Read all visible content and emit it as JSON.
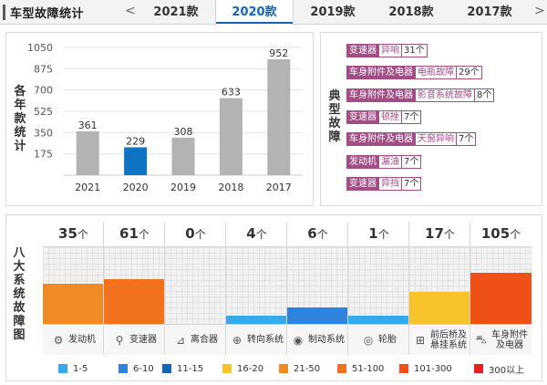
{
  "header": {
    "title": "车型故障统计",
    "prev_arrow": "<",
    "next_arrow": ">",
    "tabs": [
      "2021款",
      "2020款",
      "2019款",
      "2018款",
      "2017款"
    ],
    "active_tab": "2020款"
  },
  "chart_data": {
    "type": "bar",
    "ylabel": "各年款统计",
    "yticks": [
      175,
      350,
      525,
      700,
      875,
      1050
    ],
    "ylim": [
      0,
      1050
    ],
    "grid": true,
    "categories": [
      "2021",
      "2020",
      "2019",
      "2018",
      "2017"
    ],
    "values": [
      361,
      229,
      308,
      633,
      952
    ],
    "highlight": "2020",
    "colors": {
      "default": "#b3b3b3",
      "highlight": "#0f74c4"
    }
  },
  "typical_faults": {
    "label": "典型故障",
    "items": [
      {
        "category": "变速器",
        "desc": "异响",
        "count": "31个"
      },
      {
        "category": "车身附件及电器",
        "desc": "电瓶故障",
        "count": "29个"
      },
      {
        "category": "车身附件及电器",
        "desc": "影音系统故障",
        "count": "8个"
      },
      {
        "category": "变速器",
        "desc": "顿挫",
        "count": "7个"
      },
      {
        "category": "车身附件及电器",
        "desc": "天窗异响",
        "count": "7个"
      },
      {
        "category": "发动机",
        "desc": "漏油",
        "count": "7个"
      },
      {
        "category": "变速器",
        "desc": "异挡",
        "count": "7个"
      }
    ]
  },
  "systems": {
    "label": "八大系统故障图",
    "unit": "个",
    "items": [
      {
        "value": "35",
        "name": "发动机",
        "icon": "engine-icon",
        "level": 0.52,
        "color": "#f08a24"
      },
      {
        "value": "61",
        "name": "变速器",
        "icon": "gearshift-icon",
        "level": 0.58,
        "color": "#f2711c"
      },
      {
        "value": "0",
        "name": "离合器",
        "icon": "clutch-pedal-icon",
        "level": 0.0,
        "color": "#ffffff"
      },
      {
        "value": "4",
        "name": "转向系统",
        "icon": "steering-wheel-icon",
        "level": 0.11,
        "color": "#36a9e8"
      },
      {
        "value": "6",
        "name": "制动系统",
        "icon": "brake-disc-icon",
        "level": 0.22,
        "color": "#2e84dc"
      },
      {
        "value": "1",
        "name": "轮胎",
        "icon": "tire-icon",
        "level": 0.11,
        "color": "#36a9e8"
      },
      {
        "value": "17",
        "name": "前后桥及\n悬挂系统",
        "icon": "suspension-icon",
        "level": 0.42,
        "color": "#f8c22a"
      },
      {
        "value": "105",
        "name": "车身附件\n及电器",
        "icon": "car-body-icon",
        "level": 0.67,
        "color": "#ef5016"
      }
    ]
  },
  "legend": [
    {
      "label": "1-5",
      "color": "#36a9e8"
    },
    {
      "label": "6-10",
      "color": "#2e84dc"
    },
    {
      "label": "11-15",
      "color": "#1665b2"
    },
    {
      "label": "16-20",
      "color": "#f8c22a"
    },
    {
      "label": "21-50",
      "color": "#f08a24"
    },
    {
      "label": "51-100",
      "color": "#f2711c"
    },
    {
      "label": "101-300",
      "color": "#ef5016"
    },
    {
      "label": "300以上",
      "color": "#e42320"
    }
  ]
}
